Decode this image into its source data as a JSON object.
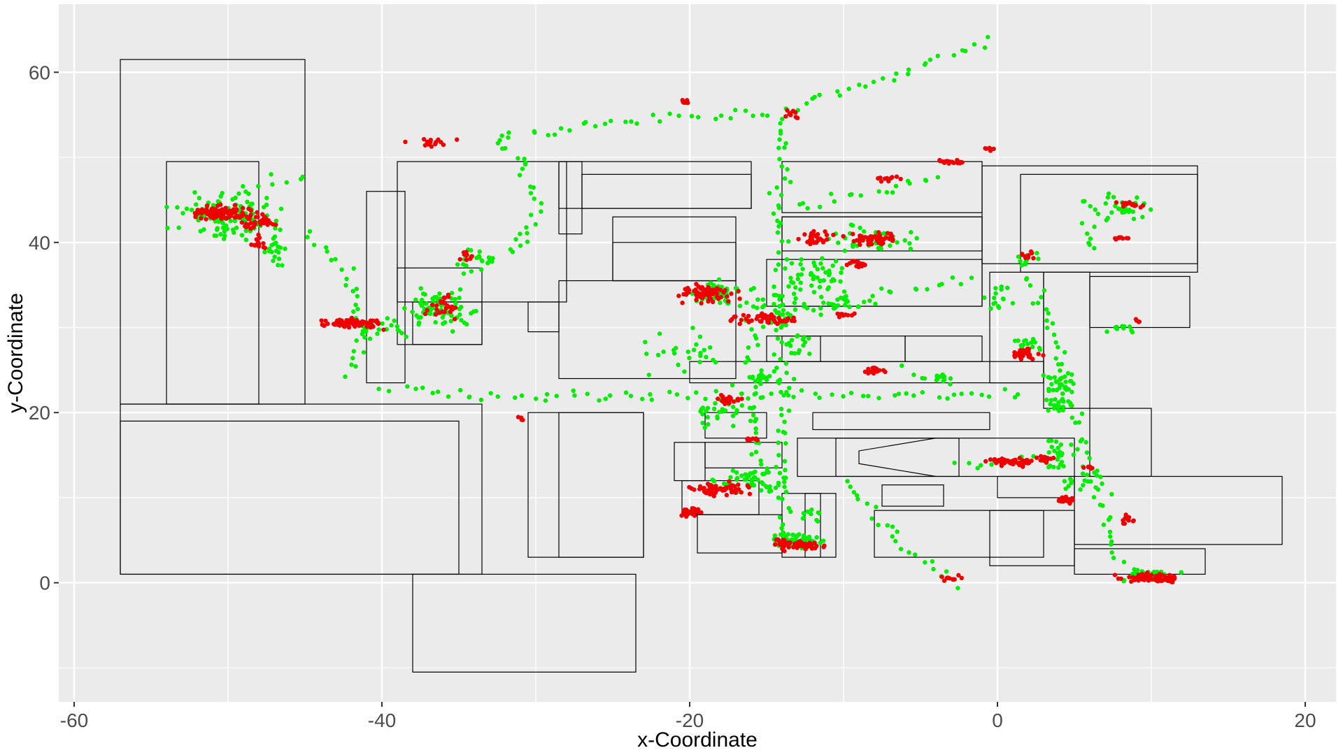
{
  "chart_data": {
    "type": "scatter",
    "title": "",
    "xlabel": "x-Coordinate",
    "ylabel": "y-Coordinate",
    "xlim": [
      -61,
      22
    ],
    "ylim": [
      -14,
      68
    ],
    "x_ticks": [
      -60,
      -40,
      -20,
      0,
      20
    ],
    "y_ticks": [
      0,
      20,
      40,
      60
    ],
    "grid": true,
    "legend": "none",
    "colors": {
      "panel": "#ebebeb",
      "grid": "#ffffff",
      "outline": "#000000",
      "series_a": "#00ee00",
      "series_b": "#ee0000"
    },
    "floorplan_rects": [
      [
        -57,
        21,
        -45,
        61.5
      ],
      [
        -54,
        21,
        -48,
        49.5
      ],
      [
        -57,
        1,
        -33.5,
        21
      ],
      [
        -57,
        1,
        -35,
        19
      ],
      [
        -38,
        -10.5,
        -23.5,
        1
      ],
      [
        -41,
        23.5,
        -38.5,
        46
      ],
      [
        -39,
        33,
        -28,
        49.5
      ],
      [
        -39,
        28,
        -33.5,
        37
      ],
      [
        -38,
        28,
        -33.5,
        33
      ],
      [
        -28.5,
        41,
        -27,
        49.5
      ],
      [
        -27,
        44,
        -16,
        48
      ],
      [
        -28.5,
        44,
        -16,
        49.5
      ],
      [
        -25,
        35.5,
        -17,
        43
      ],
      [
        -25,
        35.5,
        -17,
        40
      ],
      [
        -30.5,
        29.5,
        -28.5,
        33
      ],
      [
        -28.5,
        24,
        -17,
        35.5
      ],
      [
        -30.5,
        3,
        -23,
        20
      ],
      [
        -28.5,
        3,
        -23,
        20
      ],
      [
        -21,
        12,
        -19,
        16.5
      ],
      [
        -19.5,
        3.5,
        -14,
        8
      ],
      [
        -20.5,
        8,
        -15.5,
        12
      ],
      [
        -19,
        13.5,
        -14,
        16.5
      ],
      [
        -19,
        17,
        -15,
        20
      ],
      [
        -14,
        3,
        -11.5,
        10.5
      ],
      [
        -12.5,
        3,
        -10.5,
        10.5
      ],
      [
        -13,
        12.5,
        5,
        17
      ],
      [
        -10.5,
        12.5,
        -2.5,
        17
      ],
      [
        -7.5,
        9,
        -3.5,
        11.5
      ],
      [
        -8,
        3,
        3,
        8.5
      ],
      [
        -0.5,
        2,
        5,
        8.5
      ],
      [
        0,
        10,
        5,
        12.5
      ],
      [
        -12,
        18,
        -0.5,
        20
      ],
      [
        -20,
        23.5,
        3,
        26
      ],
      [
        -15,
        26,
        -11.5,
        29
      ],
      [
        -14,
        26,
        -6,
        29
      ],
      [
        -6,
        26,
        -1,
        29
      ],
      [
        -15,
        32.5,
        -1,
        38
      ],
      [
        -14,
        32.5,
        -1,
        43
      ],
      [
        -14,
        43.5,
        -1,
        49.5
      ],
      [
        -14,
        39,
        -1,
        43
      ],
      [
        -1,
        37.5,
        13,
        49
      ],
      [
        1.5,
        36.5,
        13,
        48
      ],
      [
        -0.5,
        23.5,
        3,
        36.5
      ],
      [
        3,
        20.5,
        6,
        36.5
      ],
      [
        6,
        30,
        12.5,
        36
      ],
      [
        6,
        12.5,
        10,
        20.5
      ],
      [
        5,
        4.5,
        18.5,
        12.5
      ],
      [
        5,
        1,
        13.5,
        4
      ]
    ],
    "series": [
      {
        "name": "",
        "clusters": [
          [
            -50,
            43,
            3,
            2.5,
            110
          ],
          [
            -47,
            39,
            1,
            2,
            20
          ],
          [
            -40,
            30,
            2,
            1,
            20
          ],
          [
            -36,
            32,
            2,
            2,
            70
          ],
          [
            -34,
            38,
            1.5,
            1,
            15
          ],
          [
            -18,
            34,
            2,
            1.5,
            45
          ],
          [
            -12,
            36,
            2,
            2,
            45
          ],
          [
            -8,
            40,
            3,
            1.5,
            35
          ],
          [
            -14,
            32,
            2,
            2,
            40
          ],
          [
            -13,
            28,
            1,
            1.5,
            15
          ],
          [
            -18,
            20,
            2,
            1.5,
            30
          ],
          [
            -16,
            12,
            2,
            1.5,
            50
          ],
          [
            -13,
            5,
            1.5,
            1,
            50
          ],
          [
            -12,
            8,
            1,
            1,
            10
          ],
          [
            2,
            28,
            1,
            1,
            15
          ],
          [
            4,
            22,
            1,
            3,
            45
          ],
          [
            4,
            15,
            1,
            2,
            25
          ],
          [
            2,
            38,
            1,
            1,
            10
          ],
          [
            8,
            44,
            1.5,
            1.5,
            25
          ],
          [
            10,
            1,
            2,
            0.8,
            30
          ],
          [
            8,
            30,
            1,
            0.5,
            10
          ],
          [
            -4,
            24,
            1.5,
            0.5,
            12
          ],
          [
            -20,
            27,
            3,
            2,
            25
          ],
          [
            -10,
            33,
            2,
            1,
            20
          ],
          [
            -15,
            24,
            2,
            1,
            20
          ],
          [
            0,
            33,
            1,
            2,
            15
          ],
          [
            6,
            12,
            1.5,
            1,
            15
          ]
        ],
        "paths": [
          [
            [
              -45,
              48
            ],
            [
              -48,
              47
            ],
            [
              -51,
              44
            ]
          ],
          [
            [
              -45,
              41
            ],
            [
              -42,
              36
            ],
            [
              -41,
              30
            ],
            [
              -42,
              24
            ]
          ],
          [
            [
              -40,
              23
            ],
            [
              -34,
              22
            ],
            [
              -28,
              22
            ],
            [
              -20,
              22
            ],
            [
              -12,
              22
            ],
            [
              -4,
              22
            ],
            [
              2,
              22
            ]
          ],
          [
            [
              -31,
              40
            ],
            [
              -33,
              38
            ],
            [
              -35,
              36
            ]
          ],
          [
            [
              -31,
              40
            ],
            [
              -30,
              45
            ],
            [
              -31,
              50
            ],
            [
              -33,
              52
            ]
          ],
          [
            [
              -33,
              52
            ],
            [
              -26,
              54
            ],
            [
              -20,
              55
            ],
            [
              -14,
              55
            ]
          ],
          [
            [
              -14,
              55
            ],
            [
              -12,
              57
            ],
            [
              -6,
              60
            ],
            [
              -3,
              62
            ],
            [
              0,
              64
            ]
          ],
          [
            [
              -14,
              54
            ],
            [
              -14,
              44
            ],
            [
              -14,
              34
            ],
            [
              -14,
              24
            ],
            [
              -14,
              14
            ],
            [
              -14,
              4
            ]
          ],
          [
            [
              -16,
              30
            ],
            [
              -16,
              20
            ],
            [
              -15,
              10
            ]
          ],
          [
            [
              -13,
              44
            ],
            [
              -8,
              46
            ],
            [
              -3,
              48
            ]
          ],
          [
            [
              3,
              32
            ],
            [
              4,
              26
            ],
            [
              5,
              20
            ],
            [
              6,
              14
            ]
          ],
          [
            [
              6,
              14
            ],
            [
              7,
              8
            ],
            [
              8,
              2
            ]
          ],
          [
            [
              7,
              46
            ],
            [
              9,
              44
            ]
          ],
          [
            [
              -10,
              12
            ],
            [
              -6,
              4
            ],
            [
              -2,
              -1
            ]
          ],
          [
            [
              -10,
              42
            ],
            [
              -6,
              41
            ]
          ],
          [
            [
              -12,
              32
            ],
            [
              -8,
              33
            ]
          ],
          [
            [
              -6,
              25
            ],
            [
              -4,
              24
            ]
          ],
          [
            [
              -8,
              34
            ],
            [
              -4,
              35
            ],
            [
              -1,
              36
            ]
          ],
          [
            [
              2,
              36
            ],
            [
              3,
              32
            ]
          ],
          [
            [
              6,
              39
            ],
            [
              6,
              46
            ]
          ],
          [
            [
              -3,
              14
            ],
            [
              0,
              14
            ],
            [
              3,
              15
            ]
          ]
        ]
      },
      {
        "name": "",
        "clusters": [
          [
            -50.5,
            43.5,
            1.8,
            0.8,
            100
          ],
          [
            -48,
            42.5,
            1.2,
            0.8,
            40
          ],
          [
            -48,
            40,
            0.5,
            0.8,
            15
          ],
          [
            -42,
            30.5,
            1.8,
            0.5,
            90
          ],
          [
            -36,
            32.5,
            1,
            1.5,
            25
          ],
          [
            -34.5,
            38.3,
            0.5,
            0.5,
            10
          ],
          [
            -37,
            51.8,
            1.5,
            0.5,
            15
          ],
          [
            -20.3,
            56.5,
            0.2,
            0.2,
            10
          ],
          [
            -13.3,
            55,
            0.4,
            0.6,
            10
          ],
          [
            -19,
            34,
            1.5,
            1,
            70
          ],
          [
            -15,
            31,
            2,
            0.6,
            50
          ],
          [
            -12,
            40.5,
            1,
            0.6,
            30
          ],
          [
            -8,
            40.5,
            1.5,
            0.8,
            50
          ],
          [
            -9,
            37.5,
            0.8,
            0.5,
            20
          ],
          [
            -8,
            25,
            0.6,
            0.5,
            20
          ],
          [
            -17.5,
            21.5,
            1,
            0.6,
            20
          ],
          [
            -18,
            11,
            2,
            0.8,
            60
          ],
          [
            -20,
            8.3,
            0.6,
            0.5,
            25
          ],
          [
            -13,
            4.5,
            1.5,
            0.6,
            60
          ],
          [
            -3,
            49.5,
            1,
            0.3,
            20
          ],
          [
            -7,
            47.5,
            1,
            0.3,
            10
          ],
          [
            1,
            14.2,
            1.5,
            0.4,
            60
          ],
          [
            3,
            14.5,
            0.6,
            0.4,
            15
          ],
          [
            2,
            27,
            0.8,
            0.6,
            30
          ],
          [
            4.5,
            9.8,
            0.5,
            0.4,
            20
          ],
          [
            2,
            38.5,
            0.5,
            0.5,
            10
          ],
          [
            8,
            40.5,
            0.5,
            0.3,
            10
          ],
          [
            8.5,
            44.5,
            0.8,
            0.5,
            15
          ],
          [
            10,
            0.5,
            1.8,
            0.5,
            80
          ],
          [
            8.5,
            7.5,
            0.5,
            0.5,
            10
          ],
          [
            -3,
            0.5,
            0.8,
            0.3,
            10
          ],
          [
            -0.5,
            51,
            0.3,
            0.2,
            6
          ],
          [
            -16,
            16.8,
            0.6,
            0.2,
            10
          ],
          [
            -10,
            31.5,
            0.6,
            0.3,
            10
          ],
          [
            -31,
            19.3,
            0.2,
            0.2,
            4
          ],
          [
            6,
            13.5,
            0.5,
            0.3,
            8
          ],
          [
            9,
            30.8,
            0.2,
            0.2,
            4
          ]
        ],
        "paths": []
      }
    ]
  }
}
